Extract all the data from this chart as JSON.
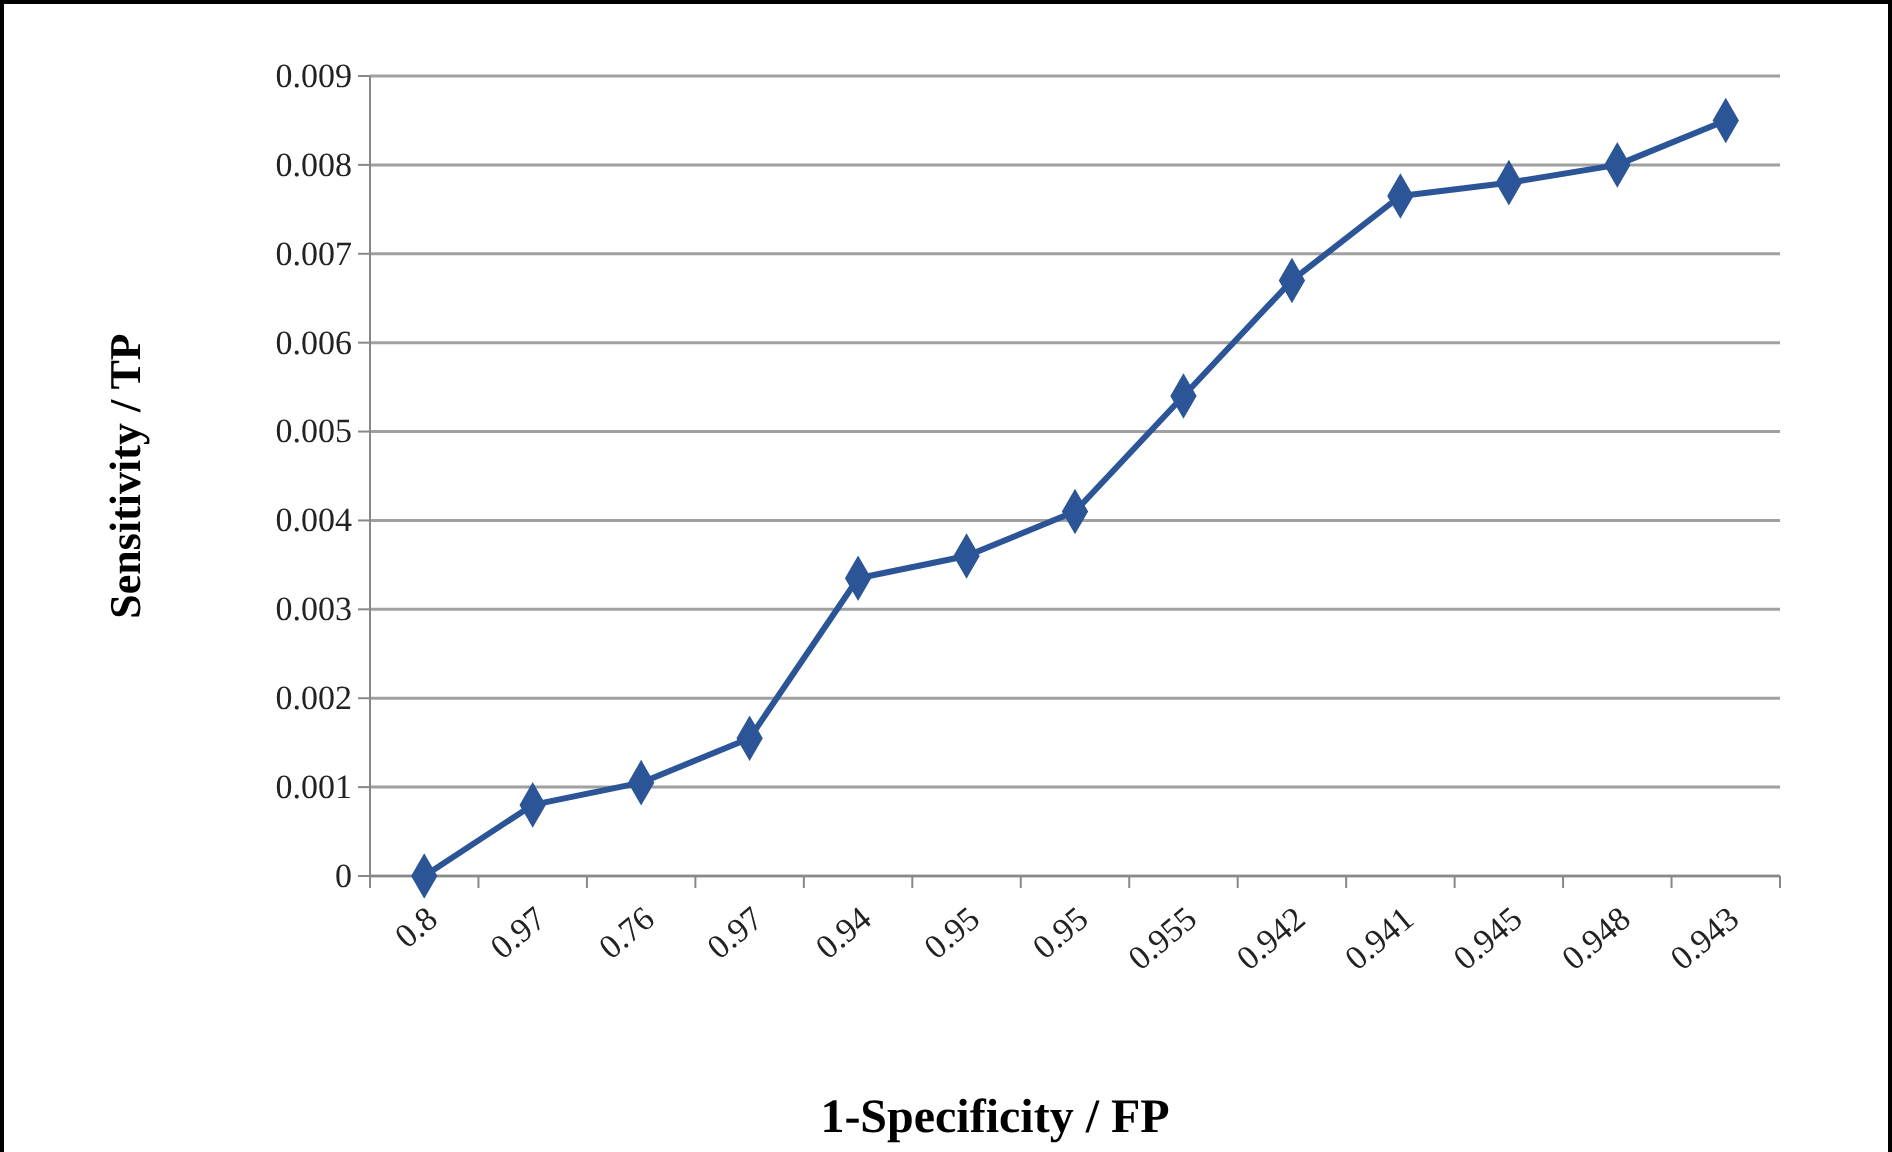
{
  "chart_data": {
    "type": "line",
    "xlabel": "1-Specificity / FP",
    "ylabel": "Sensitivity / TP",
    "categories": [
      "0.8",
      "0.97",
      "0.76",
      "0.97",
      "0.94",
      "0.95",
      "0.95",
      "0.955",
      "0.942",
      "0.941",
      "0.945",
      "0.948",
      "0.943"
    ],
    "series": [
      {
        "color": "#2b5597",
        "values": [
          0,
          0.0008,
          0.00105,
          0.00155,
          0.00335,
          0.0036,
          0.0041,
          0.0054,
          0.0067,
          0.00765,
          0.0078,
          0.008,
          0.0085
        ]
      }
    ],
    "ylim": [
      0,
      0.009
    ],
    "yticks": [
      0,
      0.001,
      0.002,
      0.003,
      0.004,
      0.005,
      0.006,
      0.007,
      0.008,
      0.009
    ],
    "grid": "y",
    "marker": "diamond",
    "line_style": "solid",
    "legend": false
  }
}
